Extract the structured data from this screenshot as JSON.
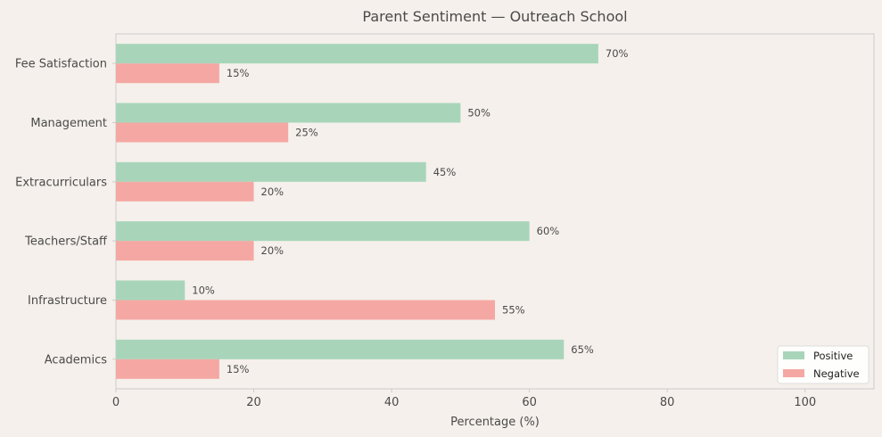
{
  "chart_data": {
    "type": "bar",
    "orientation": "horizontal",
    "title": "Parent Sentiment — Outreach School",
    "xlabel": "Percentage (%)",
    "ylabel": "",
    "categories": [
      "Fee Satisfaction",
      "Management",
      "Extracurriculars",
      "Teachers/Staff",
      "Infrastructure",
      "Academics"
    ],
    "series": [
      {
        "name": "Positive",
        "color": "#a8d5ba",
        "values": [
          70,
          50,
          45,
          60,
          10,
          65
        ],
        "labels": [
          "70%",
          "50%",
          "45%",
          "60%",
          "10%",
          "65%"
        ]
      },
      {
        "name": "Negative",
        "color": "#f5a8a3",
        "values": [
          15,
          25,
          20,
          20,
          55,
          15
        ],
        "labels": [
          "15%",
          "25%",
          "20%",
          "20%",
          "55%",
          "15%"
        ]
      }
    ],
    "xlim": [
      0,
      110
    ],
    "xticks": [
      0,
      20,
      40,
      60,
      80,
      100
    ],
    "xtick_labels": [
      "0",
      "20",
      "40",
      "60",
      "80",
      "100"
    ],
    "grid": false,
    "legend_position": "bottom-right",
    "colors": {
      "background": "#f5f0eb",
      "plot_border": "#cccccc",
      "text": "#4a4a4a"
    }
  }
}
